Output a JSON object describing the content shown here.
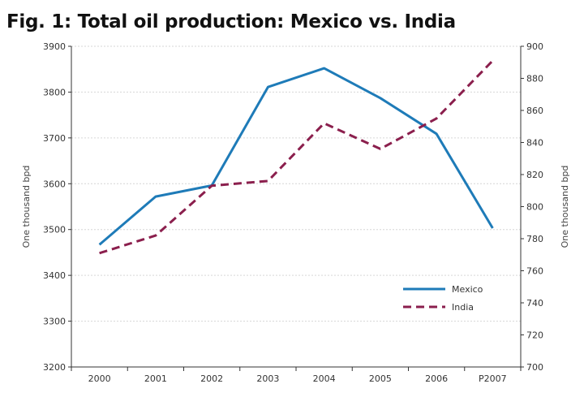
{
  "chart_data": {
    "type": "line",
    "title": "Fig. 1: Total oil production: Mexico vs. India",
    "categories": [
      "2000",
      "2001",
      "2002",
      "2003",
      "2004",
      "2005",
      "2006",
      "P2007"
    ],
    "ylabel_left": "One thousand bpd",
    "ylabel_right": "One thousand bpd",
    "ylim_left": [
      3200,
      3900
    ],
    "ylim_right": [
      700,
      900
    ],
    "yticks_left": [
      3200,
      3300,
      3400,
      3500,
      3600,
      3700,
      3800,
      3900
    ],
    "yticks_right": [
      700,
      720,
      740,
      760,
      780,
      800,
      820,
      840,
      860,
      880,
      900
    ],
    "grid": true,
    "legend_position": "bottom-right",
    "series": [
      {
        "name": "Mexico",
        "axis": "left",
        "style": "solid",
        "color": "#1e7bb8",
        "values": [
          3467,
          3572,
          3596,
          3811,
          3852,
          3787,
          3709,
          3503
        ]
      },
      {
        "name": "India",
        "axis": "right",
        "style": "dashed",
        "color": "#8b1f4d",
        "values": [
          771,
          782,
          813,
          816,
          852,
          836,
          855,
          891
        ]
      }
    ]
  }
}
